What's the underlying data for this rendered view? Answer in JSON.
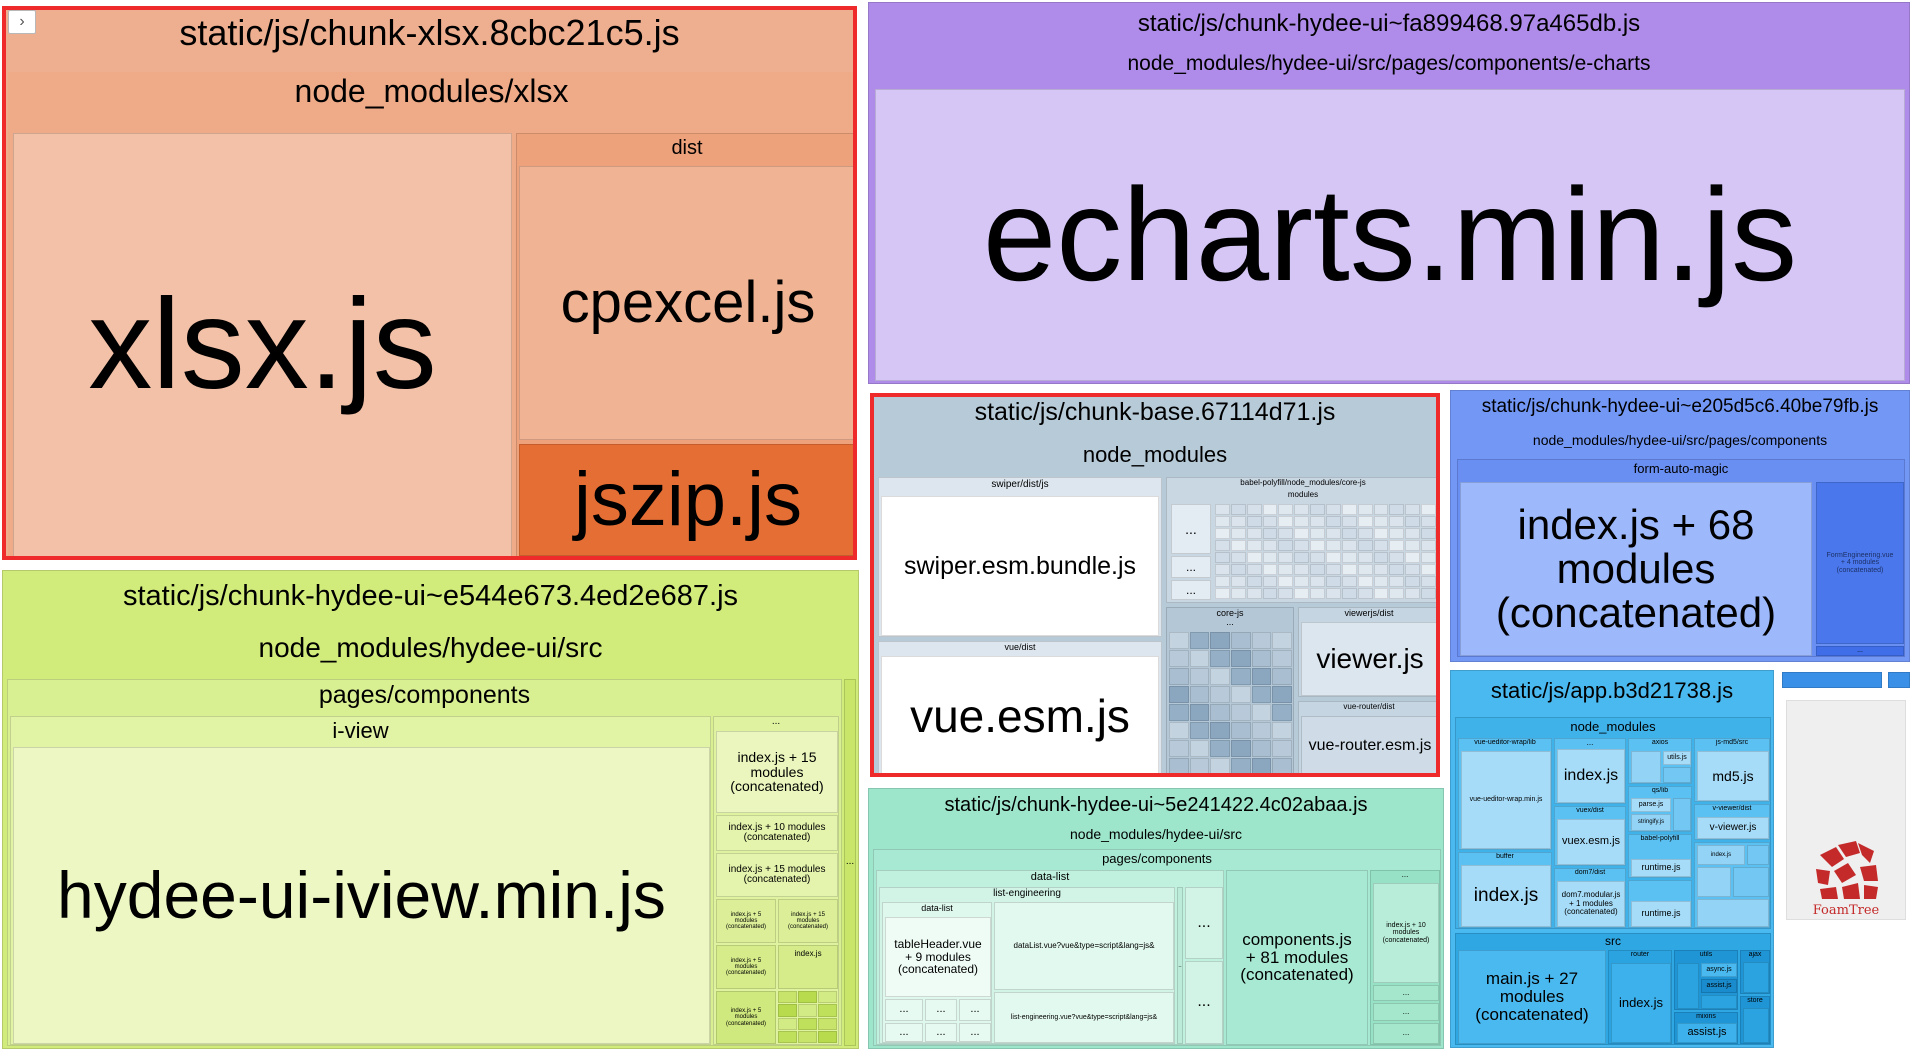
{
  "colors": {
    "xlsx_chunk": "#eeaf90",
    "hydee_echarts_chunk": "#af8ce9",
    "base_chunk": "#b7cad8",
    "hydee_e205_chunk": "#7397f5",
    "hydee_e544_chunk": "#d2ec7c",
    "hydee_5e24_chunk": "#9de6cc",
    "app_chunk": "#4ab9ef",
    "highlight_border": "#ee2a2a",
    "foamtree_logo": "#c42a2a"
  },
  "toggle_icon": "chevron-right-icon",
  "toggle_glyph": "›",
  "foamtree_label": "FoamTree",
  "chunks": {
    "xlsx": {
      "title": "static/js/chunk-xlsx.8cbc21c5.js",
      "folder": "node_modules/xlsx",
      "main_file": "xlsx.js",
      "dist_folder": "dist",
      "cpexcel": "cpexcel.js",
      "jszip": "jszip.js"
    },
    "echarts": {
      "title": "static/js/chunk-hydee-ui~fa899468.97a465db.js",
      "folder": "node_modules/hydee-ui/src/pages/components/e-charts",
      "main_file": "echarts.min.js"
    },
    "base": {
      "title": "static/js/chunk-base.67114d71.js",
      "folder": "node_modules",
      "swiper_folder": "swiper/dist/js",
      "swiper_file": "swiper.esm.bundle.js",
      "babel_folder": "babel-polyfill/node_modules/core-js",
      "babel_modules": "modules",
      "vue_folder": "vue/dist",
      "vue_file": "vue.esm.js",
      "corejs_folder": "core-js",
      "viewerjs_folder": "viewerjs/dist",
      "viewer_file": "viewer.js",
      "vue_router_folder": "vue-router/dist",
      "vue_router_file": "vue-router.esm.js",
      "ellipsis": "..."
    },
    "e205": {
      "title": "static/js/chunk-hydee-ui~e205d5c6.40be79fb.js",
      "folder": "node_modules/hydee-ui/src/pages/components",
      "sub_folder": "form-auto-magic",
      "main_file": "index.js + 68\nmodules\n(concatenated)",
      "side_file": "FormEngineering.vue\n+ 4 modules\n(concatenated)",
      "ellipsis": "..."
    },
    "e544": {
      "title": "static/js/chunk-hydee-ui~e544e673.4ed2e687.js",
      "folder": "node_modules/hydee-ui/src",
      "sub_folder": "pages/components",
      "iview_folder": "i-view",
      "main_file": "hydee-ui-iview.min.js",
      "file_a": "index.js + 15\nmodules\n(concatenated)",
      "file_b": "index.js + 10 modules\n(concatenated)",
      "file_c": "index.js + 15 modules\n(concatenated)",
      "small_a": "index.js + 5\nmodules\n(concatenated)",
      "small_b": "index.js + 15\nmodules\n(concatenated)",
      "small_c": "index.js + 5\nmodules\n(concatenated)",
      "small_d": "index.js",
      "small_e": "index.js + 5\nmodules\n(concatenated)",
      "ellipsis": "..."
    },
    "c5e24": {
      "title": "static/js/chunk-hydee-ui~5e241422.4c02abaa.js",
      "folder": "node_modules/hydee-ui/src",
      "sub_folder": "pages/components",
      "data_list_folder": "data-list",
      "list_eng_folder": "list-engineering",
      "data_list_inner": "data-list",
      "table_header": "tableHeader.vue\n+ 9 modules\n(concatenated)",
      "data_list_vue": "dataList.vue?vue&type=script&lang=js&",
      "list_eng_vue": "list-engineering.vue?vue&type=script&lang=js&",
      "components_file": "components.js\n+ 81 modules\n(concatenated)",
      "side_file": "index.js + 10\nmodules\n(concatenated)",
      "ellipsis": "..."
    },
    "app": {
      "title": "static/js/app.b3d21738.js",
      "folder": "node_modules",
      "vue_ueditor_folder": "vue-ueditor-wrap/lib",
      "vue_ueditor_file": "vue-ueditor-wrap.min.js",
      "buffer_folder": "buffer",
      "buffer_file": "index.js",
      "index_file": "index.js",
      "vuex_folder": "vuex/dist",
      "vuex_file": "vuex.esm.js",
      "dom7_folder": "dom7/dist",
      "dom7_file": "dom7.modular.js\n+ 1 modules\n(concatenated)",
      "axios_folder": "axios",
      "utils_file": "utils.js",
      "qs_folder": "qs/lib",
      "parse_file": "parse.js",
      "stringify_file": "stringify.js",
      "babel_polyfill": "babel-polyfill",
      "runtime_file": "runtime.js",
      "runtime_file_b": "runtime.js",
      "jsmd5_folder": "js-md5/src",
      "md5_file": "md5.js",
      "vviewer_folder": "v-viewer/dist",
      "vviewer_file": "v-viewer.js",
      "index_small": "index.js",
      "src_folder": "src",
      "main_file": "main.js + 27\nmodules\n(concatenated)",
      "router_folder": "router",
      "router_index": "index.js",
      "utils_folder": "utils",
      "asyncjs_file": "async.js",
      "assistjs_file": "assist.js",
      "mixins_folder": "mixins",
      "store_folder": "store",
      "ajax_folder": "ajax",
      "ellipsis": "..."
    }
  }
}
